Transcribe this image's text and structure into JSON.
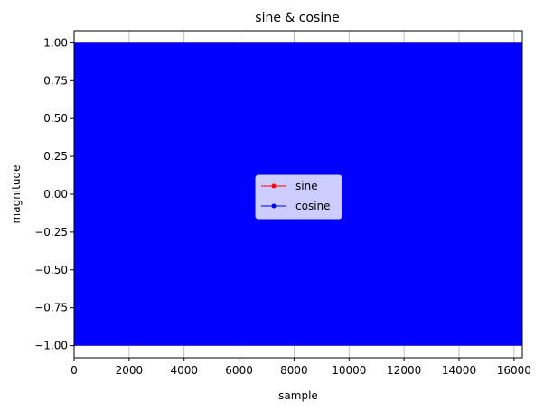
{
  "chart_data": {
    "type": "line",
    "title": "sine & cosine",
    "xlabel": "sample",
    "ylabel": "magnitude",
    "xlim": [
      0,
      16300
    ],
    "ylim": [
      -1.08,
      1.08
    ],
    "x_ticks": [
      0,
      2000,
      4000,
      6000,
      8000,
      10000,
      12000,
      14000,
      16000
    ],
    "x_tick_labels": [
      "0",
      "2000",
      "4000",
      "6000",
      "8000",
      "10000",
      "12000",
      "14000",
      "16000"
    ],
    "y_ticks": [
      1.0,
      0.75,
      0.5,
      0.25,
      0.0,
      -0.25,
      -0.5,
      -0.75,
      -1.0
    ],
    "y_tick_labels": [
      "1.00",
      "0.75",
      "0.50",
      "0.25",
      "0.00",
      "−0.25",
      "−0.50",
      "−0.75",
      "−1.00"
    ],
    "grid": true,
    "legend_position": "center",
    "series": [
      {
        "name": "sine",
        "color": "#ff0000",
        "marker": "circle",
        "x_range": [
          0,
          16300
        ],
        "amplitude": 1.0
      },
      {
        "name": "cosine",
        "color": "#0000ff",
        "marker": "circle",
        "x_range": [
          0,
          16300
        ],
        "amplitude": 1.0
      }
    ]
  }
}
